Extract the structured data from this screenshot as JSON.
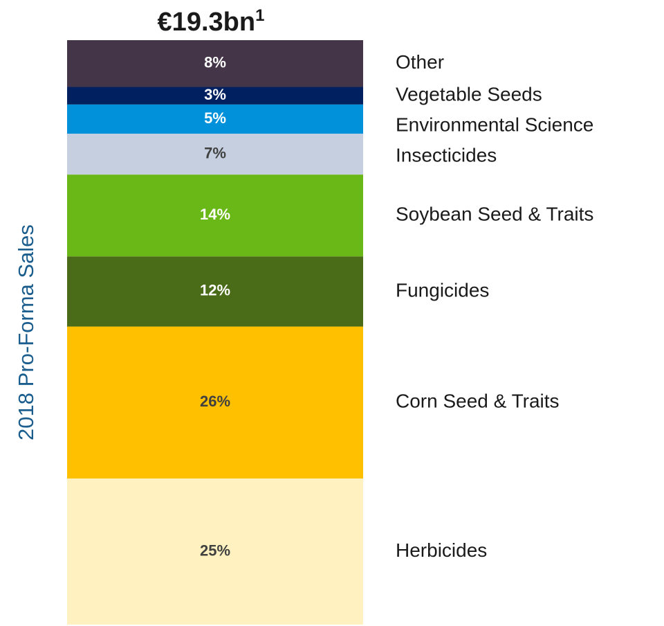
{
  "chart_data": {
    "type": "stacked_bar",
    "title": "€19.3bn",
    "title_note": "1",
    "ylabel": "2018 Pro-Forma Sales",
    "ylim": [
      0,
      100
    ],
    "series": [
      {
        "name": "Herbicides",
        "color": "#fff2c0",
        "label_color": "#404040",
        "values": [
          25
        ],
        "value_labels": [
          "25%"
        ]
      },
      {
        "name": "Corn Seed & Traits",
        "color": "#ffc000",
        "label_color": "#404040",
        "values": [
          26
        ],
        "value_labels": [
          "26%"
        ]
      },
      {
        "name": "Fungicides",
        "color": "#4a6b18",
        "label_color": "#ffffff",
        "values": [
          12
        ],
        "value_labels": [
          "12%"
        ]
      },
      {
        "name": "Soybean Seed & Traits",
        "color": "#6ab718",
        "label_color": "#ffffff",
        "values": [
          14
        ],
        "value_labels": [
          "14%"
        ]
      },
      {
        "name": "Insecticides",
        "color": "#c5cfe0",
        "label_color": "#404040",
        "values": [
          7
        ],
        "value_labels": [
          "7%"
        ]
      },
      {
        "name": "Environmental Science",
        "color": "#0091da",
        "label_color": "#ffffff",
        "values": [
          5
        ],
        "value_labels": [
          "5%"
        ]
      },
      {
        "name": "Vegetable Seeds",
        "color": "#002060",
        "label_color": "#ffffff",
        "values": [
          3
        ],
        "value_labels": [
          "3%"
        ]
      },
      {
        "name": "Other",
        "color": "#453548",
        "label_color": "#ffffff",
        "values": [
          8
        ],
        "value_labels": [
          "8%"
        ]
      }
    ]
  }
}
